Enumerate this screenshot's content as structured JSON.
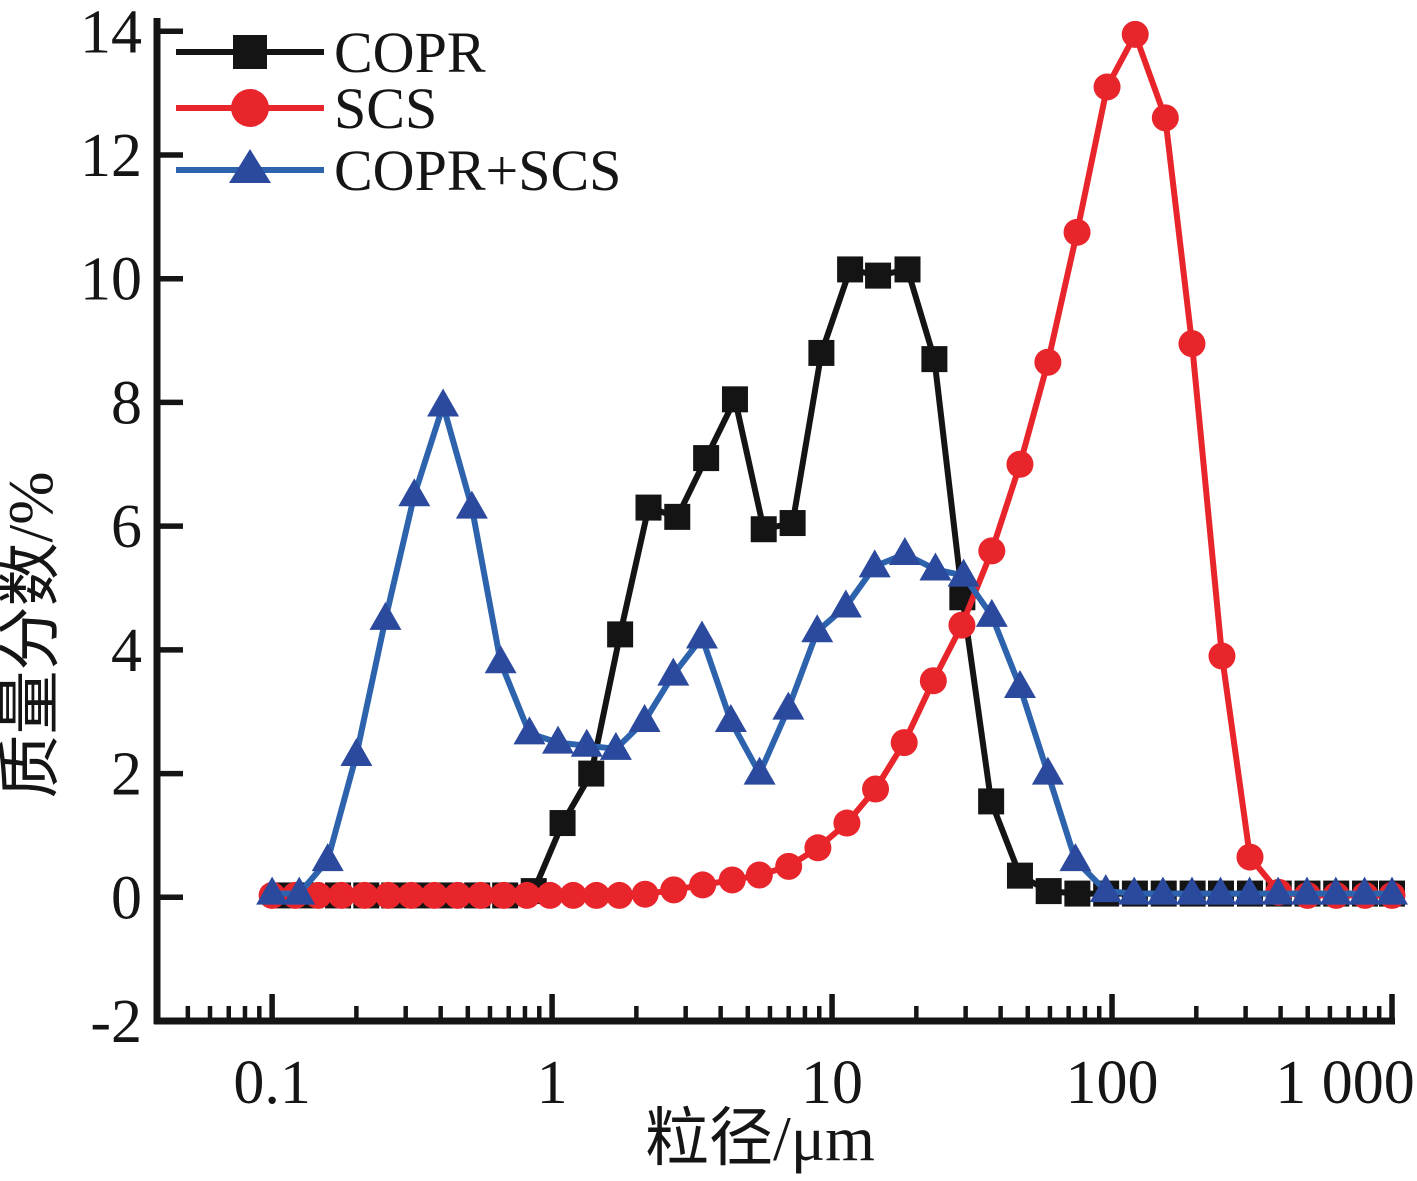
{
  "chart_data": {
    "type": "line",
    "title": "",
    "xlabel": "粒径/μm",
    "ylabel": "质量分数/%",
    "x_scale": "log",
    "x_range": [
      0.0388,
      1000
    ],
    "y_range": [
      -2.0,
      14.15
    ],
    "x_ticks": [
      0.1,
      1,
      10,
      100,
      1000
    ],
    "x_tick_labels": [
      "0.1",
      "1",
      "10",
      "100",
      "1 000"
    ],
    "y_ticks": [
      14,
      12,
      10,
      8,
      6,
      4,
      2,
      0,
      -2
    ],
    "grid": false,
    "legend_position": "top-left",
    "axis_color": "#151515",
    "series": [
      {
        "name": "COPR",
        "marker": "square",
        "color": "#141414",
        "marker_color": "#141414",
        "x": [
          0.108,
          0.136,
          0.172,
          0.217,
          0.273,
          0.344,
          0.43,
          0.54,
          0.68,
          0.86,
          1.09,
          1.38,
          1.75,
          2.21,
          2.8,
          3.55,
          4.5,
          5.7,
          7.23,
          9.16,
          11.6,
          14.6,
          18.6,
          23.2,
          29.2,
          37,
          46.9,
          59.4,
          75.2,
          95.3,
          120.7,
          153,
          194,
          245,
          311,
          394,
          499,
          632,
          801,
          1000
        ],
        "y": [
          0.03,
          0.03,
          0.03,
          0.03,
          0.03,
          0.03,
          0.03,
          0.03,
          0.03,
          0.1,
          1.2,
          2.0,
          4.25,
          6.3,
          6.15,
          7.1,
          8.05,
          5.95,
          6.05,
          8.8,
          10.15,
          10.05,
          10.15,
          8.7,
          4.85,
          1.55,
          0.35,
          0.1,
          0.06,
          0.06,
          0.06,
          0.06,
          0.06,
          0.06,
          0.06,
          0.06,
          0.06,
          0.06,
          0.06,
          0.06
        ]
      },
      {
        "name": "SCS",
        "marker": "circle",
        "color": "#e8252b",
        "marker_color": "#e8252b",
        "x": [
          0.1,
          0.121,
          0.146,
          0.177,
          0.214,
          0.26,
          0.314,
          0.38,
          0.46,
          0.556,
          0.672,
          0.813,
          0.983,
          1.19,
          1.44,
          1.74,
          2.15,
          2.72,
          3.45,
          4.4,
          5.5,
          7.0,
          8.9,
          11.3,
          14.3,
          18.1,
          23.0,
          29.1,
          37.2,
          46.9,
          59.0,
          75.0,
          96,
          121,
          155,
          193,
          247,
          311,
          394,
          499,
          632,
          801,
          1000
        ],
        "y": [
          0.03,
          0.03,
          0.03,
          0.03,
          0.03,
          0.03,
          0.03,
          0.03,
          0.03,
          0.03,
          0.03,
          0.03,
          0.03,
          0.03,
          0.03,
          0.03,
          0.05,
          0.12,
          0.2,
          0.28,
          0.36,
          0.5,
          0.8,
          1.2,
          1.75,
          2.5,
          3.5,
          4.4,
          5.6,
          7.0,
          8.65,
          10.75,
          13.1,
          13.95,
          12.6,
          8.95,
          3.9,
          0.65,
          0.08,
          0.03,
          0.03,
          0.03,
          0.03
        ]
      },
      {
        "name": "COPR+SCS",
        "marker": "triangle",
        "color": "#2d62ad",
        "marker_color": "#2b4a9e",
        "x": [
          0.1,
          0.125,
          0.158,
          0.2,
          0.254,
          0.322,
          0.408,
          0.517,
          0.655,
          0.83,
          1.05,
          1.33,
          1.69,
          2.14,
          2.71,
          3.43,
          4.35,
          5.51,
          6.98,
          8.85,
          11.2,
          14.2,
          18.2,
          23.4,
          29.5,
          37.2,
          46.9,
          59,
          74,
          95,
          120,
          152,
          193,
          244,
          310,
          392,
          497,
          630,
          798,
          1000
        ],
        "y": [
          0.06,
          0.06,
          0.6,
          2.3,
          4.5,
          6.5,
          7.95,
          6.3,
          3.8,
          2.65,
          2.5,
          2.45,
          2.4,
          2.85,
          3.6,
          4.2,
          2.85,
          2.0,
          3.05,
          4.3,
          4.7,
          5.35,
          5.55,
          5.3,
          5.2,
          4.55,
          3.4,
          2.0,
          0.6,
          0.1,
          0.06,
          0.06,
          0.06,
          0.06,
          0.06,
          0.06,
          0.06,
          0.06,
          0.06,
          0.06
        ]
      }
    ]
  }
}
